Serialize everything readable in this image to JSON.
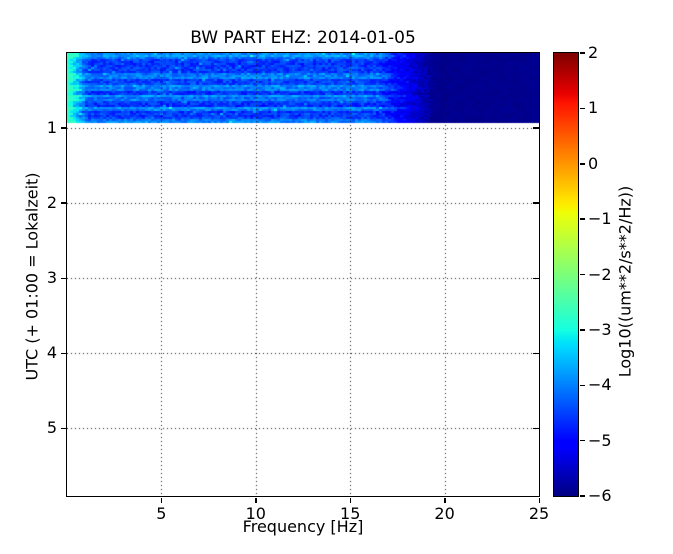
{
  "chart_data": {
    "type": "heatmap",
    "title": "BW PART EHZ: 2014-01-05",
    "xlabel": "Frequency [Hz]",
    "ylabel": "UTC (+ 01:00 = Lokalzeit)",
    "xlim": [
      0,
      25
    ],
    "ylim": [
      0,
      5.9
    ],
    "y_axis_points_downward": true,
    "xticks": [
      5,
      10,
      15,
      20,
      25
    ],
    "yticks": [
      1,
      2,
      3,
      4,
      5
    ],
    "grid": {
      "style": "dotted",
      "color": "#1a1a1a"
    },
    "colormap": "jet",
    "colorbar": {
      "label": "Log10((um**2/s**2/Hz))",
      "vmin": -6,
      "vmax": 2,
      "ticks": [
        2,
        1,
        0,
        -1,
        -2,
        -3,
        -4,
        -5,
        -6
      ]
    },
    "spectrogram_band": {
      "time_span_hours": [
        0,
        0.93
      ],
      "freq_span_hz": [
        0,
        25
      ],
      "background_db": -4.55,
      "low_freq_peak_db": -2.7,
      "low_freq_width_hz": 1.1,
      "fade_start_hz": 16.3,
      "fade_end_hz": 19.4,
      "dark_level_db": -5.9,
      "bright_row_fractions": [
        0.04,
        0.33,
        0.5,
        0.64,
        0.8,
        0.97
      ],
      "bright_row_boost_db": 0.55,
      "noise_db": 0.33,
      "sparkle_chance": 0.05,
      "sparkle_boost_db": 0.8,
      "max_db_clamp": -2.7,
      "random_seed": 20140105
    }
  }
}
